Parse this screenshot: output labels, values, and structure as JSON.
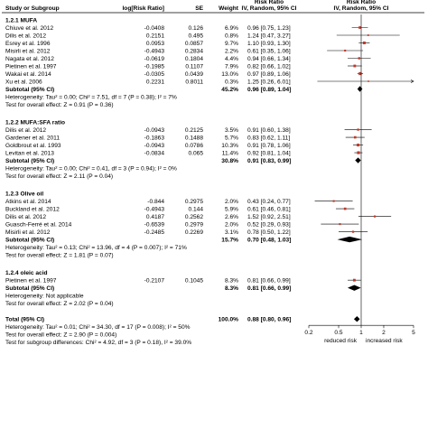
{
  "chart_data": {
    "type": "forest",
    "header": {
      "study": "Study or Subgroup",
      "lograt": "log[Risk Ratio]",
      "se": "SE",
      "weight": "Weight",
      "rr_title_left": "Risk Ratio",
      "rr_sub_left": "IV, Random, 95% CI",
      "rr_title_right": "Risk Ratio",
      "rr_sub_right": "IV, Random, 95% CI"
    },
    "axis": {
      "scale": "log",
      "ticks": [
        0.2,
        0.5,
        1,
        2,
        5
      ],
      "tick_labels": [
        "0.2",
        "0.5",
        "1",
        "2",
        "5"
      ],
      "range": [
        0.2,
        5
      ],
      "reference": 1,
      "label_left": "reduced risk",
      "label_right": "increased risk"
    },
    "groups": [
      {
        "title": "1.2.1 MUFA",
        "studies": [
          {
            "name": "Chiuve et al. 2012",
            "logrr": "-0.0408",
            "se": "0.126",
            "weight": "6.9%",
            "ci_text": "0.96 [0.75, 1.23]",
            "rr": 0.96,
            "lo": 0.75,
            "hi": 1.23
          },
          {
            "name": "Dilis et al. 2012",
            "logrr": "0.2151",
            "se": "0.495",
            "weight": "0.8%",
            "ci_text": "1.24 [0.47, 3.27]",
            "rr": 1.24,
            "lo": 0.47,
            "hi": 3.27
          },
          {
            "name": "Esrey et al. 1996",
            "logrr": "0.0953",
            "se": "0.0857",
            "weight": "9.7%",
            "ci_text": "1.10 [0.93, 1.30]",
            "rr": 1.1,
            "lo": 0.93,
            "hi": 1.3
          },
          {
            "name": "Misirli et al. 2012",
            "logrr": "-0.4943",
            "se": "0.2834",
            "weight": "2.2%",
            "ci_text": "0.61 [0.35, 1.06]",
            "rr": 0.61,
            "lo": 0.35,
            "hi": 1.06
          },
          {
            "name": "Nagata et al. 2012",
            "logrr": "-0.0619",
            "se": "0.1804",
            "weight": "4.4%",
            "ci_text": "0.94 [0.66, 1.34]",
            "rr": 0.94,
            "lo": 0.66,
            "hi": 1.34
          },
          {
            "name": "Pietinen et al. 1997",
            "logrr": "-0.1985",
            "se": "0.1107",
            "weight": "7.9%",
            "ci_text": "0.82 [0.66, 1.02]",
            "rr": 0.82,
            "lo": 0.66,
            "hi": 1.02
          },
          {
            "name": "Wakai et al. 2014",
            "logrr": "-0.0305",
            "se": "0.0439",
            "weight": "13.0%",
            "ci_text": "0.97 [0.89, 1.06]",
            "rr": 0.97,
            "lo": 0.89,
            "hi": 1.06
          },
          {
            "name": "Xu et al. 2006",
            "logrr": "0.2231",
            "se": "0.8011",
            "weight": "0.3%",
            "ci_text": "1.25 [0.26, 6.01]",
            "rr": 1.25,
            "lo": 0.26,
            "hi": 6.01
          }
        ],
        "subtotal": {
          "label": "Subtotal (95% CI)",
          "weight": "45.2%",
          "ci_text": "0.96 [0.89, 1.04]",
          "rr": 0.96,
          "lo": 0.89,
          "hi": 1.04
        },
        "heterogeneity": "Heterogeneity: Tau² = 0.00; Chi² = 7.51, df = 7 (P = 0.38); I² = 7%",
        "overall_effect": "Test for overall effect: Z = 0.91 (P = 0.36)"
      },
      {
        "title": "1.2.2 MUFA:SFA ratio",
        "studies": [
          {
            "name": "Dilis et al. 2012",
            "logrr": "-0.0943",
            "se": "0.2125",
            "weight": "3.5%",
            "ci_text": "0.91 [0.60, 1.38]",
            "rr": 0.91,
            "lo": 0.6,
            "hi": 1.38
          },
          {
            "name": "Gardener et al. 2011",
            "logrr": "-0.1863",
            "se": "0.1488",
            "weight": "5.7%",
            "ci_text": "0.83 [0.62, 1.11]",
            "rr": 0.83,
            "lo": 0.62,
            "hi": 1.11
          },
          {
            "name": "Goldbrout et al. 1993",
            "logrr": "-0.0943",
            "se": "0.0786",
            "weight": "10.3%",
            "ci_text": "0.91 [0.78, 1.06]",
            "rr": 0.91,
            "lo": 0.78,
            "hi": 1.06
          },
          {
            "name": "Levitan et al. 2013",
            "logrr": "-0.0834",
            "se": "0.065",
            "weight": "11.4%",
            "ci_text": "0.92 [0.81, 1.04]",
            "rr": 0.92,
            "lo": 0.81,
            "hi": 1.04
          }
        ],
        "subtotal": {
          "label": "Subtotal (95% CI)",
          "weight": "30.8%",
          "ci_text": "0.91 [0.83, 0.99]",
          "rr": 0.91,
          "lo": 0.83,
          "hi": 0.99
        },
        "heterogeneity": "Heterogeneity: Tau² = 0.00; Chi² = 0.41, df = 3 (P = 0.94); I² = 0%",
        "overall_effect": "Test for overall effect: Z = 2.11 (P = 0.04)"
      },
      {
        "title": "1.2.3 Olive oil",
        "studies": [
          {
            "name": "Atkins et al. 2014",
            "logrr": "-0.844",
            "se": "0.2975",
            "weight": "2.0%",
            "ci_text": "0.43 [0.24, 0.77]",
            "rr": 0.43,
            "lo": 0.24,
            "hi": 0.77
          },
          {
            "name": "Buckland et al. 2012",
            "logrr": "-0.4943",
            "se": "0.144",
            "weight": "5.9%",
            "ci_text": "0.61 [0.46, 0.81]",
            "rr": 0.61,
            "lo": 0.46,
            "hi": 0.81
          },
          {
            "name": "Dilis et al. 2012",
            "logrr": "0.4187",
            "se": "0.2562",
            "weight": "2.6%",
            "ci_text": "1.52 [0.92, 2.51]",
            "rr": 1.52,
            "lo": 0.92,
            "hi": 2.51
          },
          {
            "name": "Guasch-Ferré et al. 2014",
            "logrr": "-0.6539",
            "se": "0.2979",
            "weight": "2.0%",
            "ci_text": "0.52 [0.29, 0.93]",
            "rr": 0.52,
            "lo": 0.29,
            "hi": 0.93
          },
          {
            "name": "Misirli et al. 2012",
            "logrr": "-0.2485",
            "se": "0.2269",
            "weight": "3.1%",
            "ci_text": "0.78 [0.50, 1.22]",
            "rr": 0.78,
            "lo": 0.5,
            "hi": 1.22
          }
        ],
        "subtotal": {
          "label": "Subtotal (95% CI)",
          "weight": "15.7%",
          "ci_text": "0.70 [0.48, 1.03]",
          "rr": 0.7,
          "lo": 0.48,
          "hi": 1.03
        },
        "heterogeneity": "Heterogeneity: Tau² = 0.13; Chi² = 13.96, df = 4 (P = 0.007); I² = 71%",
        "overall_effect": "Test for overall effect: Z = 1.81 (P = 0.07)"
      },
      {
        "title": "1.2.4 oleic acid",
        "studies": [
          {
            "name": "Pietinen et al. 1997",
            "logrr": "-0.2107",
            "se": "0.1045",
            "weight": "8.3%",
            "ci_text": "0.81 [0.66, 0.99]",
            "rr": 0.81,
            "lo": 0.66,
            "hi": 0.99
          }
        ],
        "subtotal": {
          "label": "Subtotal (95% CI)",
          "weight": "8.3%",
          "ci_text": "0.81 [0.66, 0.99]",
          "rr": 0.81,
          "lo": 0.66,
          "hi": 0.99
        },
        "heterogeneity": "Heterogeneity: Not applicable",
        "overall_effect": "Test for overall effect: Z = 2.02 (P = 0.04)"
      }
    ],
    "total": {
      "label": "Total (95% CI)",
      "weight": "100.0%",
      "ci_text": "0.88 [0.80, 0.96]",
      "rr": 0.88,
      "lo": 0.8,
      "hi": 0.96,
      "heterogeneity": "Heterogeneity: Tau² = 0.01; Chi² = 34.30, df = 17 (P = 0.008); I² = 50%",
      "overall_effect": "Test for overall effect: Z = 2.90 (P = 0.004)",
      "subgroup_diff": "Test for subgroup differences: Chi² = 4.92, df = 3 (P = 0.18), I² = 39.0%"
    },
    "colors": {
      "study_marker": "#c0392b",
      "line": "#000000"
    }
  }
}
